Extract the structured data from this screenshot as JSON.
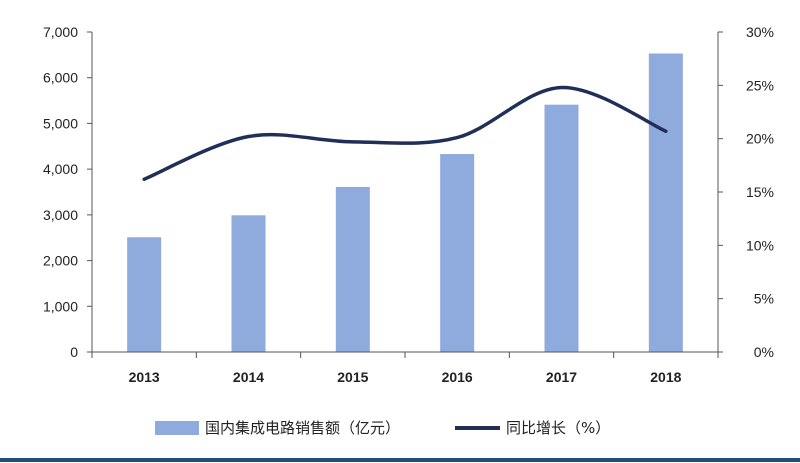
{
  "chart_data": {
    "type": "bar+line",
    "categories": [
      "2013",
      "2014",
      "2015",
      "2016",
      "2017",
      "2018"
    ],
    "series": [
      {
        "name": "国内集成电路销售额（亿元）",
        "type": "bar",
        "axis": "left",
        "values": [
          2510,
          2990,
          3610,
          4330,
          5410,
          6530
        ]
      },
      {
        "name": "同比增长（%）",
        "type": "line",
        "axis": "right",
        "values": [
          16.2,
          20.2,
          19.7,
          20.1,
          24.8,
          20.7
        ]
      }
    ],
    "yleft": {
      "ylim": [
        0,
        7000
      ],
      "ticks": [
        "0",
        "1,000",
        "2,000",
        "3,000",
        "4,000",
        "5,000",
        "6,000",
        "7,000"
      ]
    },
    "yright": {
      "ylim": [
        0,
        30
      ],
      "ticks": [
        "0%",
        "5%",
        "10%",
        "15%",
        "20%",
        "25%",
        "30%"
      ]
    },
    "legend": "bottom",
    "colors": {
      "bar": "#8faadc",
      "line": "#1f2f57",
      "axis": "#555555",
      "bottom_rule": "#1f4e79"
    }
  }
}
